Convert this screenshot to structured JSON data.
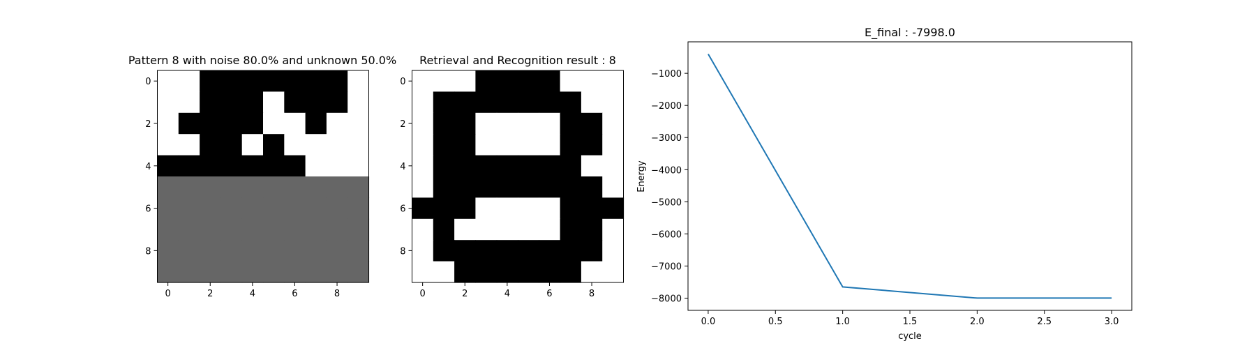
{
  "chart_data": [
    {
      "type": "heatmap",
      "title": "Pattern 8 with noise 80.0% and unknown 50.0%",
      "colormap": {
        "0": "#ffffff",
        "1": "#000000",
        "2": "#666666"
      },
      "grid": [
        [
          0,
          0,
          1,
          1,
          1,
          1,
          1,
          1,
          1,
          0
        ],
        [
          0,
          0,
          1,
          1,
          1,
          0,
          1,
          1,
          1,
          0
        ],
        [
          0,
          1,
          1,
          1,
          1,
          0,
          0,
          1,
          0,
          0
        ],
        [
          0,
          0,
          1,
          1,
          0,
          1,
          0,
          0,
          0,
          0
        ],
        [
          1,
          1,
          1,
          1,
          1,
          1,
          1,
          0,
          0,
          0
        ],
        [
          2,
          2,
          2,
          2,
          2,
          2,
          2,
          2,
          2,
          2
        ],
        [
          2,
          2,
          2,
          2,
          2,
          2,
          2,
          2,
          2,
          2
        ],
        [
          2,
          2,
          2,
          2,
          2,
          2,
          2,
          2,
          2,
          2
        ],
        [
          2,
          2,
          2,
          2,
          2,
          2,
          2,
          2,
          2,
          2
        ],
        [
          2,
          2,
          2,
          2,
          2,
          2,
          2,
          2,
          2,
          2
        ]
      ],
      "xticks": [
        "0",
        "2",
        "4",
        "6",
        "8"
      ],
      "yticks": [
        "0",
        "2",
        "4",
        "6",
        "8"
      ]
    },
    {
      "type": "heatmap",
      "title": "Retrieval and Recognition result : 8",
      "colormap": {
        "0": "#ffffff",
        "1": "#000000"
      },
      "grid": [
        [
          0,
          0,
          0,
          1,
          1,
          1,
          1,
          0,
          0,
          0
        ],
        [
          0,
          1,
          1,
          1,
          1,
          1,
          1,
          1,
          0,
          0
        ],
        [
          0,
          1,
          1,
          0,
          0,
          0,
          0,
          1,
          1,
          0
        ],
        [
          0,
          1,
          1,
          0,
          0,
          0,
          0,
          1,
          1,
          0
        ],
        [
          0,
          1,
          1,
          1,
          1,
          1,
          1,
          1,
          0,
          0
        ],
        [
          0,
          1,
          1,
          1,
          1,
          1,
          1,
          1,
          1,
          0
        ],
        [
          1,
          1,
          1,
          0,
          0,
          0,
          0,
          1,
          1,
          1
        ],
        [
          0,
          1,
          0,
          0,
          0,
          0,
          0,
          1,
          1,
          0
        ],
        [
          0,
          1,
          1,
          1,
          1,
          1,
          1,
          1,
          1,
          0
        ],
        [
          0,
          0,
          1,
          1,
          1,
          1,
          1,
          1,
          0,
          0
        ]
      ],
      "xticks": [
        "0",
        "2",
        "4",
        "6",
        "8"
      ],
      "yticks": [
        "0",
        "2",
        "4",
        "6",
        "8"
      ]
    },
    {
      "type": "line",
      "title": "E_final : -7998.0",
      "xlabel": "cycle",
      "ylabel": "Energy",
      "series": [
        {
          "x": [
            0,
            1,
            2,
            3
          ],
          "y": [
            -400,
            -7650,
            -7998,
            -7998
          ],
          "color": "#1f77b4"
        }
      ],
      "xlim": [
        -0.15,
        3.15
      ],
      "ylim": [
        -8380,
        -20
      ],
      "xticks": [
        "0.0",
        "0.5",
        "1.0",
        "1.5",
        "2.0",
        "2.5",
        "3.0"
      ],
      "yticks": [
        "-1000",
        "-2000",
        "-3000",
        "-4000",
        "-5000",
        "-6000",
        "-7000",
        "-8000"
      ]
    }
  ]
}
